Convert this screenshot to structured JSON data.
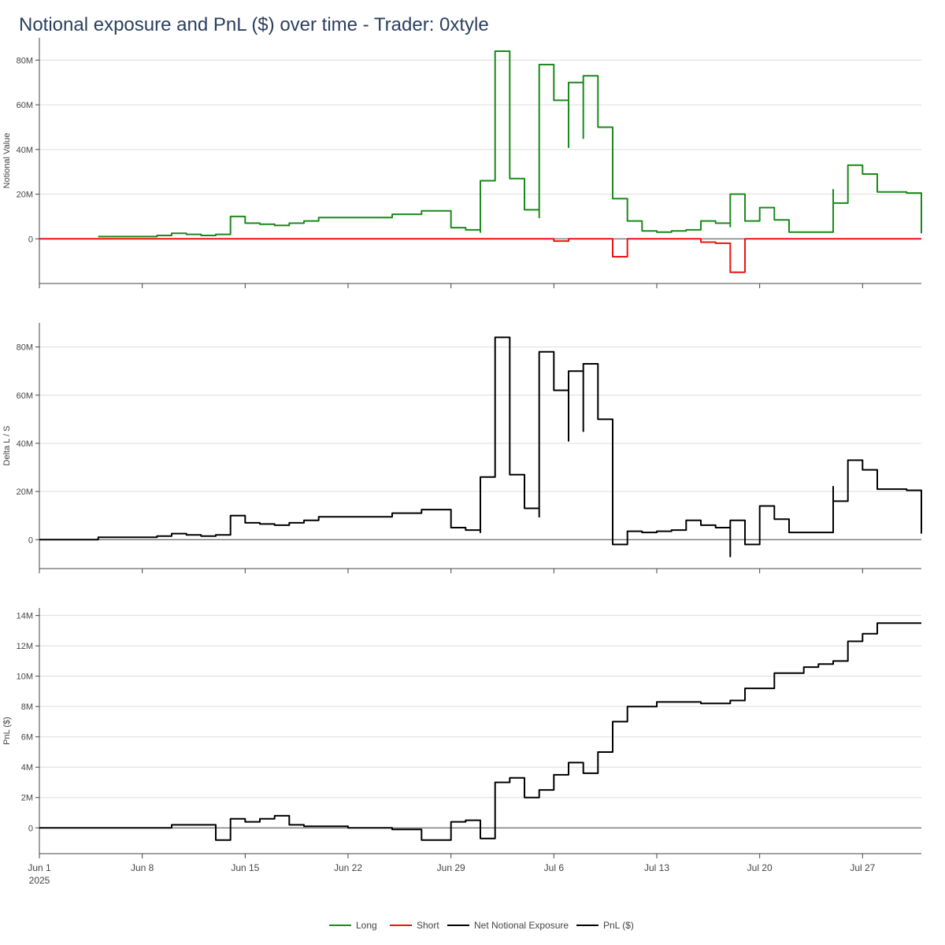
{
  "title": "Notional exposure and PnL ($) over time - Trader: 0xtyle",
  "colors": {
    "long": "#1a8a1a",
    "short": "#ee1111",
    "net": "#000000",
    "pnl": "#000000"
  },
  "chart_data": [
    {
      "type": "line",
      "ylabel": "Notional Value",
      "ylim": [
        -20,
        90
      ],
      "yticks": [
        0,
        20,
        40,
        60,
        80
      ],
      "ytick_labels": [
        "0",
        "20M",
        "40M",
        "60M",
        "80M"
      ],
      "series": [
        {
          "name": "Long",
          "x": [
            "2025-06-05",
            "2025-06-09",
            "2025-06-10",
            "2025-06-11",
            "2025-06-12",
            "2025-06-13",
            "2025-06-14",
            "2025-06-15",
            "2025-06-16",
            "2025-06-17",
            "2025-06-18",
            "2025-06-19",
            "2025-06-20",
            "2025-06-25",
            "2025-06-27",
            "2025-06-28",
            "2025-06-29",
            "2025-06-30",
            "2025-07-01",
            "2025-07-01",
            "2025-07-02",
            "2025-07-02",
            "2025-07-03",
            "2025-07-04",
            "2025-07-05",
            "2025-07-05",
            "2025-07-06",
            "2025-07-06",
            "2025-07-07",
            "2025-07-07",
            "2025-07-08",
            "2025-07-08",
            "2025-07-09",
            "2025-07-09",
            "2025-07-10",
            "2025-07-11",
            "2025-07-12",
            "2025-07-13",
            "2025-07-14",
            "2025-07-15",
            "2025-07-16",
            "2025-07-17",
            "2025-07-18",
            "2025-07-18",
            "2025-07-19",
            "2025-07-20",
            "2025-07-21",
            "2025-07-22",
            "2025-07-23",
            "2025-07-24",
            "2025-07-25",
            "2025-07-25",
            "2025-07-26",
            "2025-07-27",
            "2025-07-28",
            "2025-07-30",
            "2025-07-31"
          ],
          "values": [
            1,
            1.5,
            2.5,
            2,
            1.5,
            2,
            10,
            7,
            6.5,
            6,
            7,
            8,
            9.5,
            11,
            12.5,
            12.5,
            5,
            4,
            3,
            26,
            63,
            84,
            27,
            13,
            9.5,
            78,
            70,
            62,
            41,
            70,
            45,
            73,
            62,
            50,
            18,
            8,
            3.5,
            3,
            3.5,
            4,
            8,
            7,
            5.5,
            20,
            8,
            14,
            8.5,
            3,
            3,
            3,
            22,
            16,
            33,
            29,
            21,
            20.5,
            2.5
          ]
        },
        {
          "name": "Short",
          "x": [
            "2025-06-01",
            "2025-07-06",
            "2025-07-06",
            "2025-07-07",
            "2025-07-10",
            "2025-07-10",
            "2025-07-11",
            "2025-07-15",
            "2025-07-16",
            "2025-07-17",
            "2025-07-18",
            "2025-07-18",
            "2025-07-18",
            "2025-07-19",
            "2025-07-31"
          ],
          "values": [
            0,
            0,
            -1,
            0,
            0,
            -8,
            0,
            0,
            -1.5,
            -2,
            -2,
            -8,
            -15,
            0,
            0
          ]
        },
        {
          "name": "Net Notional Exposure"
        }
      ]
    },
    {
      "type": "line",
      "ylabel": "Delta L / S",
      "ylim": [
        -12,
        90
      ],
      "yticks": [
        0,
        20,
        40,
        60,
        80
      ],
      "ytick_labels": [
        "0",
        "20M",
        "40M",
        "60M",
        "80M"
      ],
      "series": [
        {
          "name": "Net Notional Exposure",
          "x": [
            "2025-06-01",
            "2025-06-05",
            "2025-06-05",
            "2025-06-09",
            "2025-06-10",
            "2025-06-11",
            "2025-06-12",
            "2025-06-13",
            "2025-06-14",
            "2025-06-15",
            "2025-06-16",
            "2025-06-17",
            "2025-06-18",
            "2025-06-19",
            "2025-06-20",
            "2025-06-25",
            "2025-06-27",
            "2025-06-28",
            "2025-06-29",
            "2025-06-30",
            "2025-07-01",
            "2025-07-01",
            "2025-07-02",
            "2025-07-02",
            "2025-07-03",
            "2025-07-04",
            "2025-07-05",
            "2025-07-05",
            "2025-07-06",
            "2025-07-06",
            "2025-07-07",
            "2025-07-07",
            "2025-07-08",
            "2025-07-08",
            "2025-07-09",
            "2025-07-09",
            "2025-07-10",
            "2025-07-10",
            "2025-07-11",
            "2025-07-12",
            "2025-07-13",
            "2025-07-14",
            "2025-07-15",
            "2025-07-16",
            "2025-07-17",
            "2025-07-18",
            "2025-07-18",
            "2025-07-18",
            "2025-07-19",
            "2025-07-20",
            "2025-07-21",
            "2025-07-22",
            "2025-07-23",
            "2025-07-24",
            "2025-07-25",
            "2025-07-25",
            "2025-07-26",
            "2025-07-27",
            "2025-07-28",
            "2025-07-30",
            "2025-07-31"
          ],
          "values": [
            0,
            0,
            1,
            1.5,
            2.5,
            2,
            1.5,
            2,
            10,
            7,
            6.5,
            6,
            7,
            8,
            9.5,
            11,
            12.5,
            12.5,
            5,
            4,
            3,
            26,
            63,
            84,
            27,
            13,
            9.5,
            78,
            70,
            62,
            41,
            70,
            45,
            73,
            62,
            50,
            18,
            -2,
            3.5,
            3,
            3.5,
            4,
            8,
            6,
            5,
            3,
            -7,
            8,
            -2,
            14,
            8.5,
            3,
            3,
            3,
            22,
            16,
            33,
            29,
            21,
            20.5,
            2.5
          ]
        }
      ]
    },
    {
      "type": "line",
      "ylabel": "PnL ($)",
      "ylim": [
        -1.7,
        14.5
      ],
      "yticks": [
        0,
        2,
        4,
        6,
        8,
        10,
        12,
        14
      ],
      "ytick_labels": [
        "0",
        "2M",
        "4M",
        "6M",
        "8M",
        "10M",
        "12M",
        "14M"
      ],
      "series": [
        {
          "name": "PnL ($)",
          "x": [
            "2025-06-01",
            "2025-06-09",
            "2025-06-10",
            "2025-06-13",
            "2025-06-13",
            "2025-06-14",
            "2025-06-14",
            "2025-06-15",
            "2025-06-16",
            "2025-06-17",
            "2025-06-18",
            "2025-06-19",
            "2025-06-22",
            "2025-06-25",
            "2025-06-27",
            "2025-06-29",
            "2025-06-30",
            "2025-07-01",
            "2025-07-01",
            "2025-07-02",
            "2025-07-02",
            "2025-07-03",
            "2025-07-04",
            "2025-07-05",
            "2025-07-06",
            "2025-07-07",
            "2025-07-08",
            "2025-07-09",
            "2025-07-10",
            "2025-07-11",
            "2025-07-13",
            "2025-07-14",
            "2025-07-16",
            "2025-07-18",
            "2025-07-19",
            "2025-07-20",
            "2025-07-21",
            "2025-07-23",
            "2025-07-24",
            "2025-07-25",
            "2025-07-26",
            "2025-07-27",
            "2025-07-28",
            "2025-07-31"
          ],
          "values": [
            0,
            0,
            0.2,
            0.2,
            -0.8,
            0.2,
            0.6,
            0.4,
            0.6,
            0.8,
            0.2,
            0.1,
            0,
            -0.1,
            -0.8,
            0.4,
            0.5,
            0.3,
            -0.7,
            1.5,
            3,
            3.3,
            2,
            2.5,
            3.5,
            4.3,
            3.6,
            5,
            7,
            8,
            8.3,
            8.3,
            8.2,
            8.4,
            9.2,
            9.2,
            10.2,
            10.6,
            10.8,
            11,
            12.3,
            12.8,
            13.5,
            13.5
          ]
        }
      ]
    }
  ],
  "xaxis": {
    "ticks": [
      "2025-06-01",
      "2025-06-08",
      "2025-06-15",
      "2025-06-22",
      "2025-06-29",
      "2025-07-06",
      "2025-07-13",
      "2025-07-20",
      "2025-07-27"
    ],
    "tick_labels": [
      "Jun 1",
      "Jun 8",
      "Jun 15",
      "Jun 22",
      "Jun 29",
      "Jul 6",
      "Jul 13",
      "Jul 20",
      "Jul 27"
    ],
    "first_tick_sublabel": "2025",
    "xlim": [
      "2025-06-01",
      "2025-07-31"
    ]
  },
  "legend": {
    "placement": "bottom-center",
    "items": [
      {
        "name": "Long",
        "color": "#1a8a1a"
      },
      {
        "name": "Short",
        "color": "#ee1111"
      },
      {
        "name": "Net Notional Exposure",
        "color": "#000000"
      },
      {
        "name": "PnL ($)",
        "color": "#000000"
      }
    ]
  }
}
